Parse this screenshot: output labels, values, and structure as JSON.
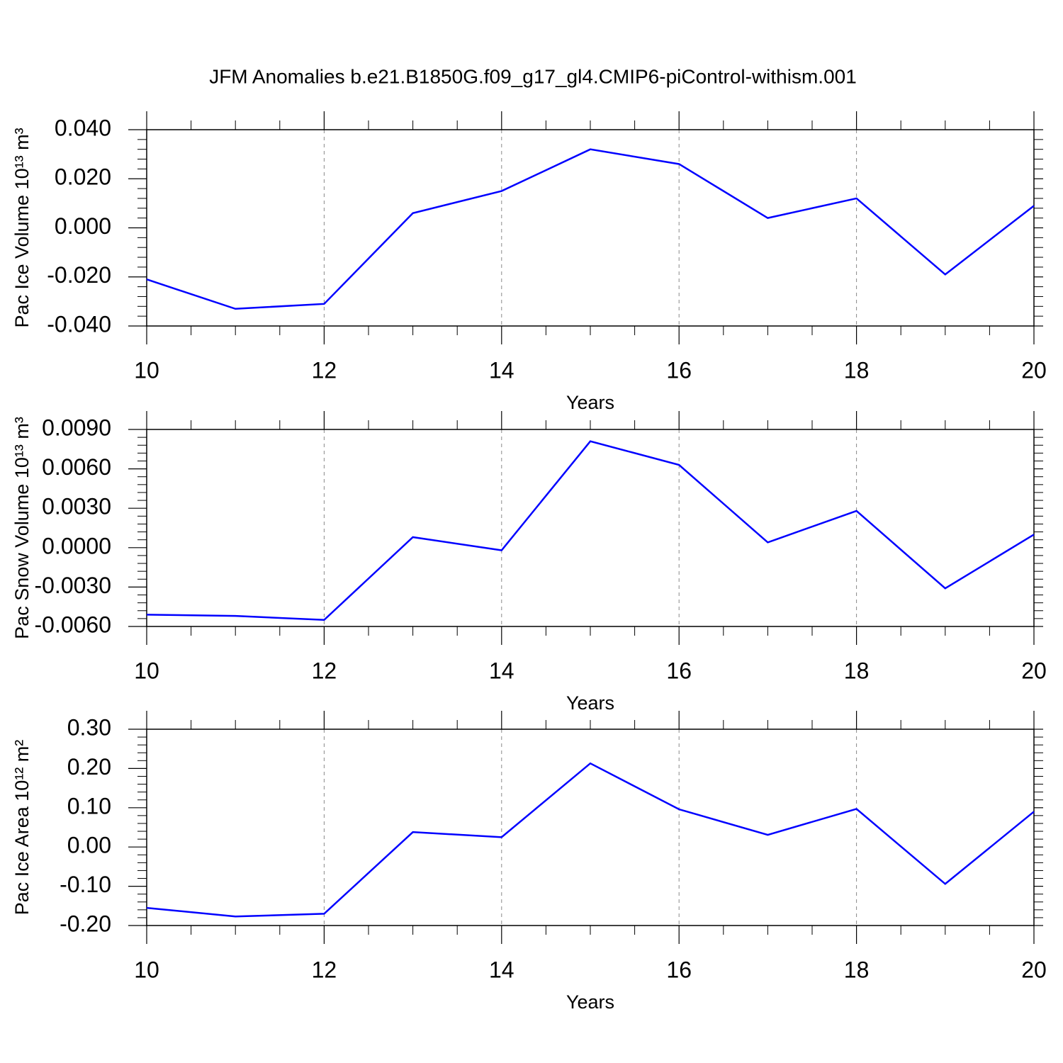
{
  "title": "JFM Anomalies b.e21.B1850G.f09_g17_gl4.CMIP6-piControl-withism.001",
  "chart_data": [
    {
      "type": "line",
      "ylabel": "Pac Ice Volume 10¹³ m³",
      "xlabel": "Years",
      "color": "#0000ff",
      "x": [
        10,
        11,
        12,
        13,
        14,
        15,
        16,
        17,
        18,
        19,
        20
      ],
      "values": [
        -0.021,
        -0.033,
        -0.031,
        0.006,
        0.015,
        0.032,
        0.026,
        0.004,
        0.012,
        -0.019,
        0.009
      ],
      "xlim": [
        10,
        20
      ],
      "xticks": [
        10,
        12,
        14,
        16,
        18,
        20
      ],
      "ylim": [
        -0.04,
        0.04
      ],
      "yticks": [
        {
          "value": -0.04,
          "label": "-0.040"
        },
        {
          "value": -0.02,
          "label": "-0.020"
        },
        {
          "value": 0,
          "label": "0.000"
        },
        {
          "value": 0.02,
          "label": "0.020"
        },
        {
          "value": 0.04,
          "label": "0.040"
        }
      ],
      "grid": true
    },
    {
      "type": "line",
      "ylabel": "Pac Snow Volume 10¹³ m³",
      "xlabel": "Years",
      "color": "#0000ff",
      "x": [
        10,
        11,
        12,
        13,
        14,
        15,
        16,
        17,
        18,
        19,
        20
      ],
      "values": [
        -0.0051,
        -0.0052,
        -0.0055,
        0.0008,
        -0.0002,
        0.0081,
        0.0063,
        0.0004,
        0.0028,
        -0.0031,
        0.001
      ],
      "xlim": [
        10,
        20
      ],
      "xticks": [
        10,
        12,
        14,
        16,
        18,
        20
      ],
      "ylim": [
        -0.006,
        0.009
      ],
      "yticks": [
        {
          "value": -0.006,
          "label": "-0.0060"
        },
        {
          "value": -0.003,
          "label": "-0.0030"
        },
        {
          "value": 0,
          "label": "0.0000"
        },
        {
          "value": 0.003,
          "label": "0.0030"
        },
        {
          "value": 0.006,
          "label": "0.0060"
        },
        {
          "value": 0.009,
          "label": "0.0090"
        }
      ],
      "grid": true
    },
    {
      "type": "line",
      "ylabel": "Pac Ice Area 10¹² m²",
      "xlabel": "Years",
      "color": "#0000ff",
      "x": [
        10,
        11,
        12,
        13,
        14,
        15,
        16,
        17,
        18,
        19,
        20
      ],
      "values": [
        -0.155,
        -0.177,
        -0.17,
        0.038,
        0.025,
        0.213,
        0.096,
        0.031,
        0.097,
        -0.094,
        0.09
      ],
      "xlim": [
        10,
        20
      ],
      "xticks": [
        10,
        12,
        14,
        16,
        18,
        20
      ],
      "ylim": [
        -0.2,
        0.3
      ],
      "yticks": [
        {
          "value": -0.2,
          "label": "-0.20"
        },
        {
          "value": -0.1,
          "label": "-0.10"
        },
        {
          "value": 0,
          "label": "0.00"
        },
        {
          "value": 0.1,
          "label": "0.10"
        },
        {
          "value": 0.2,
          "label": "0.20"
        },
        {
          "value": 0.3,
          "label": "0.30"
        }
      ],
      "grid": true
    }
  ]
}
